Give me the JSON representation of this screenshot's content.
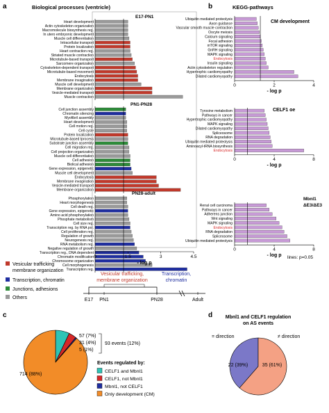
{
  "panels": {
    "a": {
      "letter": "a",
      "title": "Biological processes (ventricle)",
      "xlabel": "- log p",
      "ticks": [
        0,
        1.5,
        3,
        4.5
      ],
      "tick_labels": [
        "0",
        "1.5",
        "3",
        "4.5"
      ],
      "legend": [
        {
          "label": "Vesicular trafficking membrane organization",
          "color": "#c0392b"
        },
        {
          "label": "Transcription, chromatin",
          "color": "#1f2ea0"
        },
        {
          "label": "Junctions, adhesions",
          "color": "#2e8b3a"
        },
        {
          "label": "Others",
          "color": "#9a9a9a"
        }
      ]
    },
    "b": {
      "letter": "b",
      "title": "KEGG-pathways",
      "xlabel": "- log p",
      "lines_note": "lines: p=0.05"
    },
    "c": {
      "letter": "c",
      "events_bracket": "93 events (12%)",
      "legend_title": "Events regulated by:",
      "legend": [
        {
          "label": "CELF1 and Mbnl1",
          "color": "#2ec4b6"
        },
        {
          "label": "CELF1, not Mbnl1",
          "color": "#d62828"
        },
        {
          "label": "Mbnl1, not CELF1",
          "color": "#1f2ea0"
        },
        {
          "label": "Only development (CM)",
          "color": "#f28c28"
        }
      ]
    },
    "d": {
      "letter": "d",
      "title_line1": "Mbnl1 and CELF1 regulation",
      "title_line2": "on AS events",
      "left_label": "= direction",
      "right_label": "≠ direction"
    },
    "timeline": {
      "stages": [
        "E17",
        "PN1",
        "PN28",
        "Adult"
      ],
      "vesicular": [
        "Vesicular trafficking,",
        "membrane organization"
      ],
      "transcription": [
        "Transcription,",
        "chromatin"
      ]
    }
  },
  "chart_data": [
    {
      "type": "bar",
      "orientation": "horizontal",
      "panel": "a",
      "xlabel": "- log p",
      "xlim": [
        0,
        4.5
      ],
      "threshold": 1.3,
      "groups": [
        {
          "name": "E17-PN1",
          "bars": [
            {
              "label": "Heart development",
              "value": 1.5,
              "cat": "other"
            },
            {
              "label": "Actin cytoskeleton organization",
              "value": 1.5,
              "cat": "other"
            },
            {
              "label": "Macromolecule biosynthesis reg.",
              "value": 1.5,
              "cat": "other"
            },
            {
              "label": "In utero embryonic development",
              "value": 1.5,
              "cat": "other"
            },
            {
              "label": "Muscle cell differentiation",
              "value": 1.55,
              "cat": "other"
            },
            {
              "label": "Intracellular transport",
              "value": 1.6,
              "cat": "vesicular"
            },
            {
              "label": "Protein localization",
              "value": 1.6,
              "cat": "vesicular"
            },
            {
              "label": "Heart contraction reg.",
              "value": 1.6,
              "cat": "other"
            },
            {
              "label": "Striated muscle contraction",
              "value": 1.65,
              "cat": "other"
            },
            {
              "label": "Microtubule-based transport",
              "value": 1.7,
              "cat": "vesicular"
            },
            {
              "label": "Sarcomere organization",
              "value": 1.8,
              "cat": "other"
            },
            {
              "label": "Cytoskeleton-dependent transport",
              "value": 1.85,
              "cat": "vesicular"
            },
            {
              "label": "Microtubule-based movement",
              "value": 1.9,
              "cat": "vesicular"
            },
            {
              "label": "Endocytosis",
              "value": 1.95,
              "cat": "vesicular"
            },
            {
              "label": "Membrane invagination",
              "value": 1.95,
              "cat": "vesicular"
            },
            {
              "label": "Muscle cell development",
              "value": 2.1,
              "cat": "other"
            },
            {
              "label": "Membrane organization",
              "value": 2.6,
              "cat": "vesicular"
            },
            {
              "label": "Vesicle-mediated transport",
              "value": 2.6,
              "cat": "vesicular"
            },
            {
              "label": "Muscle contraction",
              "value": 4.0,
              "cat": "other"
            }
          ]
        },
        {
          "name": "PN1-PN28",
          "bars": [
            {
              "label": "Cell junction assembly",
              "value": 1.4,
              "cat": "junction"
            },
            {
              "label": "Chromatin silencing",
              "value": 1.4,
              "cat": "transcription"
            },
            {
              "label": "Myofibril assembly",
              "value": 1.4,
              "cat": "other"
            },
            {
              "label": "Heart development",
              "value": 1.45,
              "cat": "other"
            },
            {
              "label": "Cell motion reg.",
              "value": 1.45,
              "cat": "other"
            },
            {
              "label": "Cell cycle",
              "value": 1.45,
              "cat": "other"
            },
            {
              "label": "Protein localization",
              "value": 1.5,
              "cat": "vesicular"
            },
            {
              "label": "Microtubule-based tprocess",
              "value": 1.5,
              "cat": "other"
            },
            {
              "label": "Substrate junction assembly",
              "value": 1.5,
              "cat": "junction"
            },
            {
              "label": "Cell migration reg.",
              "value": 1.55,
              "cat": "other"
            },
            {
              "label": "Cell projection organization",
              "value": 1.55,
              "cat": "other"
            },
            {
              "label": "Muscle cell differentiation",
              "value": 1.6,
              "cat": "other"
            },
            {
              "label": "Cell adhesion",
              "value": 1.6,
              "cat": "junction"
            },
            {
              "label": "Biolical adhesion",
              "value": 1.6,
              "cat": "junction"
            },
            {
              "label": "Gene expression, epigenetic",
              "value": 1.65,
              "cat": "transcription"
            },
            {
              "label": "Muscle cell development",
              "value": 1.7,
              "cat": "other"
            },
            {
              "label": "Endocytosis",
              "value": 2.8,
              "cat": "vesicular"
            },
            {
              "label": "Membrane invagination",
              "value": 2.8,
              "cat": "vesicular"
            },
            {
              "label": "Vesicle-mediated transport",
              "value": 2.9,
              "cat": "vesicular"
            },
            {
              "label": "Membrane organization",
              "value": 3.9,
              "cat": "vesicular"
            }
          ]
        },
        {
          "name": "PN28-adult",
          "bars": [
            {
              "label": "Phosphorylation",
              "value": 1.45,
              "cat": "other"
            },
            {
              "label": "Heart morphogenesis",
              "value": 1.45,
              "cat": "other"
            },
            {
              "label": "Cell death reg.",
              "value": 1.5,
              "cat": "other"
            },
            {
              "label": "Gene expression, epigenetic",
              "value": 1.5,
              "cat": "transcription"
            },
            {
              "label": "Amino acid phosphorylation",
              "value": 1.5,
              "cat": "other"
            },
            {
              "label": "Phosphate metabolism",
              "value": 1.55,
              "cat": "other"
            },
            {
              "label": "Cell size reg.",
              "value": 1.6,
              "cat": "other"
            },
            {
              "label": "Transcription reg. by RNA pol.",
              "value": 1.6,
              "cat": "transcription"
            },
            {
              "label": "Cell proliferation reg.",
              "value": 1.65,
              "cat": "other"
            },
            {
              "label": "Regulation of growth",
              "value": 1.7,
              "cat": "other"
            },
            {
              "label": "Neurogenesis reg.",
              "value": 1.75,
              "cat": "other"
            },
            {
              "label": "RNA metabolism reg.",
              "value": 1.8,
              "cat": "transcription"
            },
            {
              "label": "Negative regulation of growth",
              "value": 1.9,
              "cat": "other"
            },
            {
              "label": "Transcription reg., DNA dependent",
              "value": 2.0,
              "cat": "transcription"
            },
            {
              "label": "Chromatin modification",
              "value": 2.2,
              "cat": "transcription"
            },
            {
              "label": "Chromosome organization",
              "value": 2.3,
              "cat": "transcription"
            },
            {
              "label": "Cell morphogenesis",
              "value": 2.6,
              "cat": "other"
            },
            {
              "label": "Transcription reg.",
              "value": 4.2,
              "cat": "transcription"
            }
          ]
        }
      ]
    },
    {
      "type": "bar",
      "orientation": "horizontal",
      "panel": "b",
      "xlabel": "- log p",
      "threshold": 1.3,
      "groups": [
        {
          "name": "CM development",
          "xlim": [
            0,
            4
          ],
          "ticks": [
            0,
            2,
            4
          ],
          "bars": [
            {
              "label": "Ubiquitin mediated proteolysis",
              "value": 1.1,
              "highlight": false
            },
            {
              "label": "Axon guidance",
              "value": 1.15,
              "highlight": false
            },
            {
              "label": "Vascular smooth muscle contraction",
              "value": 1.2,
              "highlight": false
            },
            {
              "label": "Oocyte meiosis",
              "value": 1.25,
              "highlight": false
            },
            {
              "label": "Calcium signaling",
              "value": 1.3,
              "highlight": false
            },
            {
              "label": "Focal adhesion",
              "value": 1.35,
              "highlight": false
            },
            {
              "label": "mTOR signaling",
              "value": 1.4,
              "highlight": false
            },
            {
              "label": "GnRH signaling",
              "value": 1.45,
              "highlight": false
            },
            {
              "label": "MAPK signaling",
              "value": 1.5,
              "highlight": false
            },
            {
              "label": "Endocytosis",
              "value": 1.55,
              "highlight": true
            },
            {
              "label": "Insulin signaling",
              "value": 1.6,
              "highlight": false
            },
            {
              "label": "Actin cytoskeleton regulation",
              "value": 1.7,
              "highlight": false
            },
            {
              "label": "Hypertrophic cardiomyopathy",
              "value": 3.0,
              "highlight": false
            },
            {
              "label": "Dilated cardiomyopathy",
              "value": 3.2,
              "highlight": false
            }
          ]
        },
        {
          "name": "CELF1 oe",
          "xlim": [
            0,
            8
          ],
          "ticks": [
            0,
            4,
            8
          ],
          "bars": [
            {
              "label": "Tyrosine metabolism",
              "value": 3.0,
              "highlight": false
            },
            {
              "label": "Pathways in cancer",
              "value": 3.1,
              "highlight": false
            },
            {
              "label": "Hypertrophic cardiomyopathy",
              "value": 3.2,
              "highlight": false
            },
            {
              "label": "MAPK signaling",
              "value": 3.3,
              "highlight": false
            },
            {
              "label": "Dilated cardiomyopathy",
              "value": 3.4,
              "highlight": false
            },
            {
              "label": "Spliceosome",
              "value": 3.5,
              "highlight": false
            },
            {
              "label": "RNA degradation",
              "value": 3.6,
              "highlight": false
            },
            {
              "label": "Ubiquitin mediated proteolysis",
              "value": 3.7,
              "highlight": false
            },
            {
              "label": "Aminoacyl-tRNA biosynthesis",
              "value": 3.8,
              "highlight": false
            },
            {
              "label": "Endocytosis",
              "value": 7.0,
              "highlight": true
            }
          ]
        },
        {
          "name": "Mbnl1 ΔE3/ΔE3",
          "xlim": [
            0,
            8
          ],
          "ticks": [
            0,
            4,
            8
          ],
          "bars": [
            {
              "label": "Renal cell carcinoma",
              "value": 3.2,
              "highlight": false
            },
            {
              "label": "Pathways in cancer",
              "value": 3.5,
              "highlight": false
            },
            {
              "label": "Adherens junction",
              "value": 3.8,
              "highlight": false
            },
            {
              "label": "Wnt signaling",
              "value": 4.2,
              "highlight": false
            },
            {
              "label": "MAPK signaling",
              "value": 4.5,
              "highlight": false
            },
            {
              "label": "Endocytosis",
              "value": 4.8,
              "highlight": true
            },
            {
              "label": "RNA degradation",
              "value": 5.0,
              "highlight": false
            },
            {
              "label": "Spliceosome",
              "value": 5.3,
              "highlight": false
            },
            {
              "label": "Ubiquitin mediated proteolysis",
              "value": 5.6,
              "highlight": false
            }
          ]
        }
      ]
    },
    {
      "type": "pie",
      "panel": "c",
      "slices": [
        {
          "label": "57 (7%)",
          "value": 57,
          "color": "#2ec4b6"
        },
        {
          "label": "31 (4%)",
          "value": 31,
          "color": "#d62828"
        },
        {
          "label": "5 (1%)",
          "value": 5,
          "color": "#1f2ea0"
        },
        {
          "label": "714 (88%)",
          "value": 714,
          "color": "#f28c28"
        }
      ]
    },
    {
      "type": "pie",
      "panel": "d",
      "slices": [
        {
          "label": "22 (39%)",
          "value": 22,
          "color": "#7b78c8"
        },
        {
          "label": "35 (61%)",
          "value": 35,
          "color": "#f4a184"
        }
      ]
    }
  ]
}
